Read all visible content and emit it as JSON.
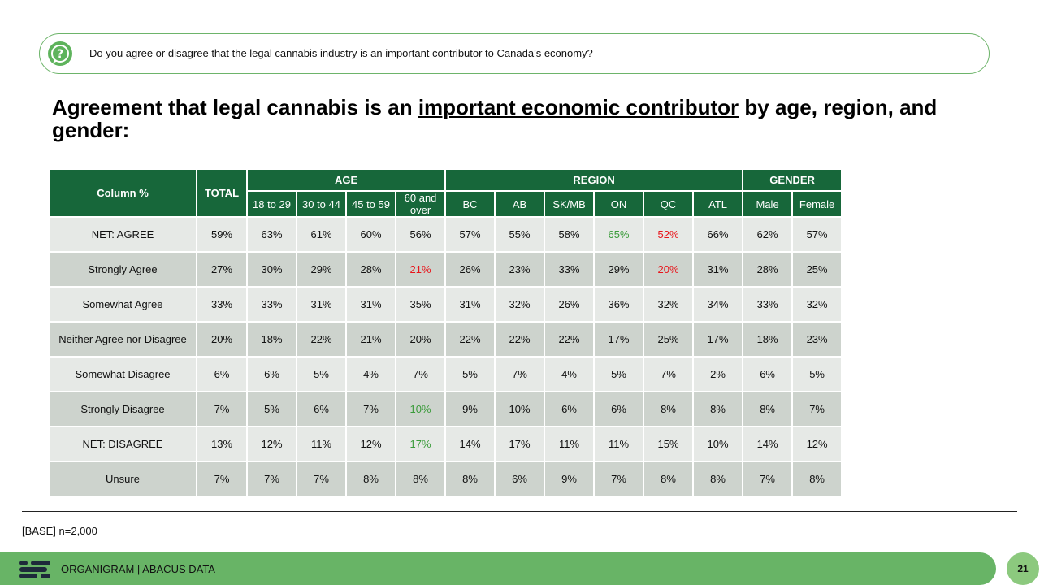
{
  "question": {
    "icon": "question-icon",
    "text": "Do you agree or disagree that the legal cannabis industry is an important contributor to Canada’s economy?"
  },
  "title": {
    "part1": "Agreement that legal cannabis is an ",
    "underlined": "important economic contributor",
    "part2": " by age, region, and gender:"
  },
  "table": {
    "corner_label": "Column %",
    "total_label": "TOTAL",
    "groups": {
      "age": "AGE",
      "region": "REGION",
      "gender": "GENDER"
    },
    "columns": [
      "18 to 29",
      "30 to 44",
      "45 to 59",
      "60 and over",
      "BC",
      "AB",
      "SK/MB",
      "ON",
      "QC",
      "ATL",
      "Male",
      "Female"
    ],
    "rows": [
      {
        "label": "NET: AGREE",
        "values": [
          "59%",
          "63%",
          "61%",
          "60%",
          "56%",
          "57%",
          "55%",
          "58%",
          "65%",
          "52%",
          "66%",
          "62%",
          "57%"
        ]
      },
      {
        "label": "Strongly Agree",
        "values": [
          "27%",
          "30%",
          "29%",
          "28%",
          "21%",
          "26%",
          "23%",
          "33%",
          "29%",
          "20%",
          "31%",
          "28%",
          "25%"
        ]
      },
      {
        "label": "Somewhat Agree",
        "values": [
          "33%",
          "33%",
          "31%",
          "31%",
          "35%",
          "31%",
          "32%",
          "26%",
          "36%",
          "32%",
          "34%",
          "33%",
          "32%"
        ]
      },
      {
        "label": "Neither Agree nor Disagree",
        "values": [
          "20%",
          "18%",
          "22%",
          "21%",
          "20%",
          "22%",
          "22%",
          "22%",
          "17%",
          "25%",
          "17%",
          "18%",
          "23%"
        ]
      },
      {
        "label": "Somewhat Disagree",
        "values": [
          "6%",
          "6%",
          "5%",
          "4%",
          "7%",
          "5%",
          "7%",
          "4%",
          "5%",
          "7%",
          "2%",
          "6%",
          "5%"
        ]
      },
      {
        "label": "Strongly Disagree",
        "values": [
          "7%",
          "5%",
          "6%",
          "7%",
          "10%",
          "9%",
          "10%",
          "6%",
          "6%",
          "8%",
          "8%",
          "8%",
          "7%"
        ]
      },
      {
        "label": "NET: DISAGREE",
        "values": [
          "13%",
          "12%",
          "11%",
          "12%",
          "17%",
          "14%",
          "17%",
          "11%",
          "11%",
          "15%",
          "10%",
          "14%",
          "12%"
        ]
      },
      {
        "label": "Unsure",
        "values": [
          "7%",
          "7%",
          "7%",
          "8%",
          "8%",
          "8%",
          "6%",
          "9%",
          "7%",
          "8%",
          "8%",
          "7%",
          "8%"
        ]
      }
    ],
    "highlight_colors": {
      "green": "#3a9b3a",
      "red": "#e8141a"
    },
    "header_color": "#17673a"
  },
  "base_note": "[BASE] n=2,000",
  "footer": {
    "logo": "organigram-logo-icon",
    "brand": "ORGANIGRAM  |  ABACUS DATA",
    "page_number": "21",
    "bar_color": "#68b466"
  }
}
